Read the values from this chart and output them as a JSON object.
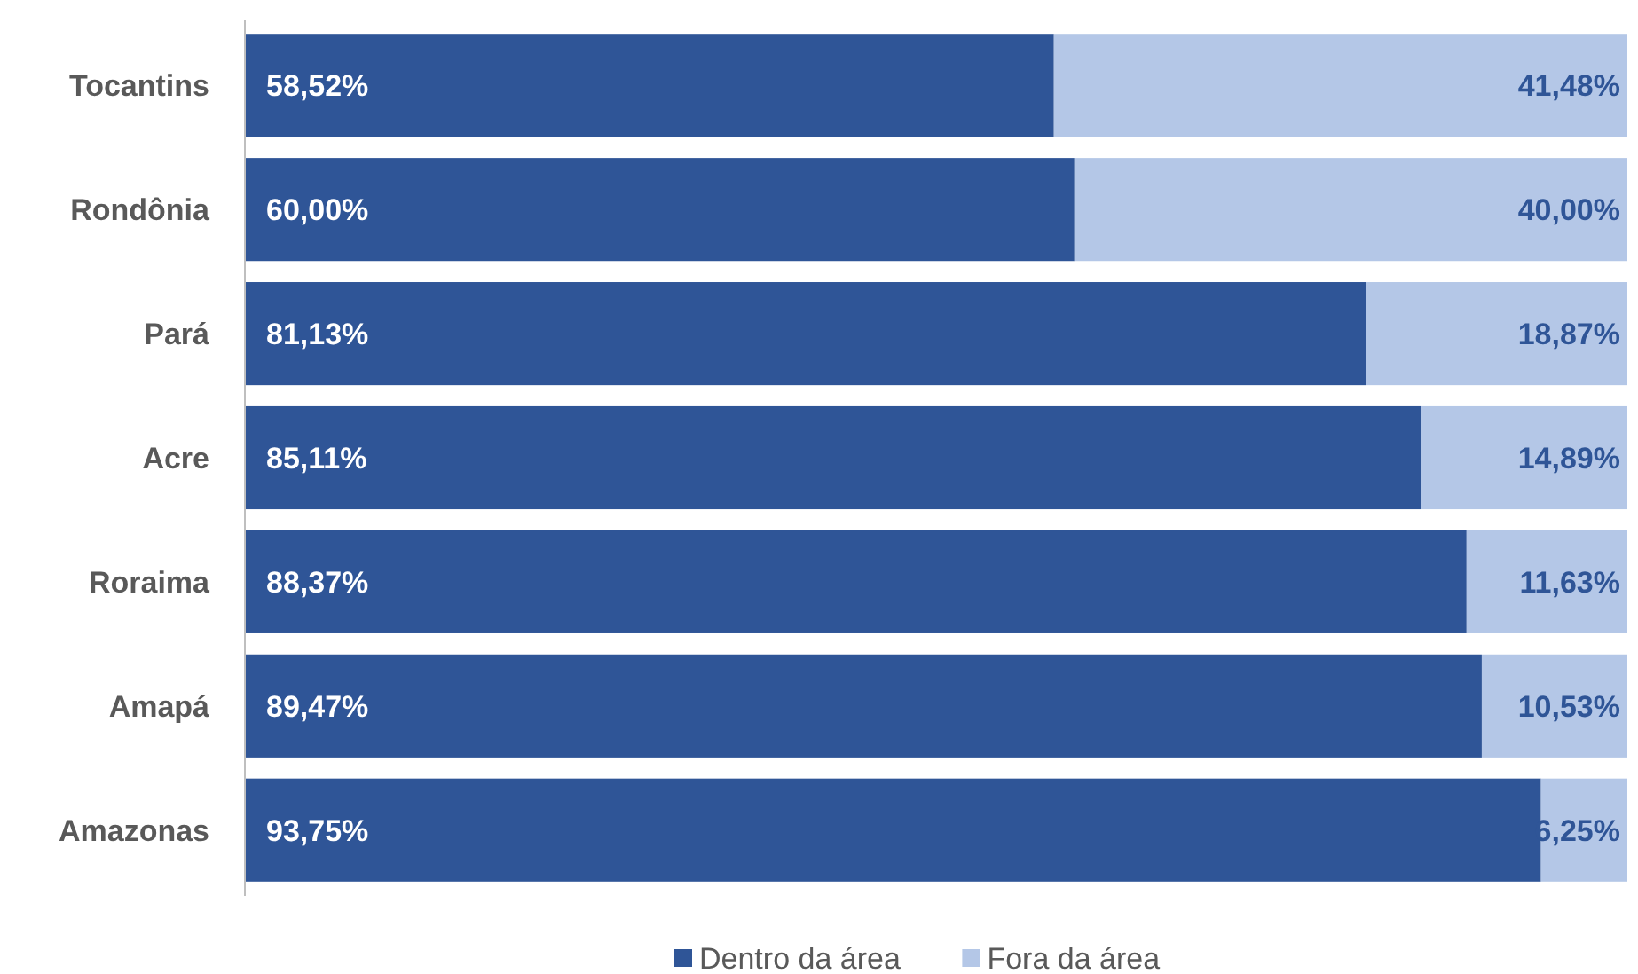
{
  "chart_data": {
    "type": "bar",
    "orientation": "horizontal",
    "stacked": true,
    "categories": [
      "Tocantins",
      "Rondônia",
      "Pará",
      "Acre",
      "Roraima",
      "Amapá",
      "Amazonas"
    ],
    "xlim": [
      0,
      100
    ],
    "tick_labels": "y",
    "legend": "bottom",
    "series": [
      {
        "name": "Dentro da área",
        "color": "#2f5597",
        "values": [
          58.52,
          60.0,
          81.13,
          85.11,
          88.37,
          89.47,
          93.75
        ],
        "value_labels": [
          "58,52%",
          "60,00%",
          "81,13%",
          "85,11%",
          "88,37%",
          "89,47%",
          "93,75%"
        ]
      },
      {
        "name": "Fora da área",
        "color": "#b4c7e7",
        "values": [
          41.48,
          40.0,
          18.87,
          14.89,
          11.63,
          10.53,
          6.25
        ],
        "value_labels": [
          "41,48%",
          "40,00%",
          "18,87%",
          "14,89%",
          "11,63%",
          "10,53%",
          "6,25%"
        ]
      }
    ]
  }
}
